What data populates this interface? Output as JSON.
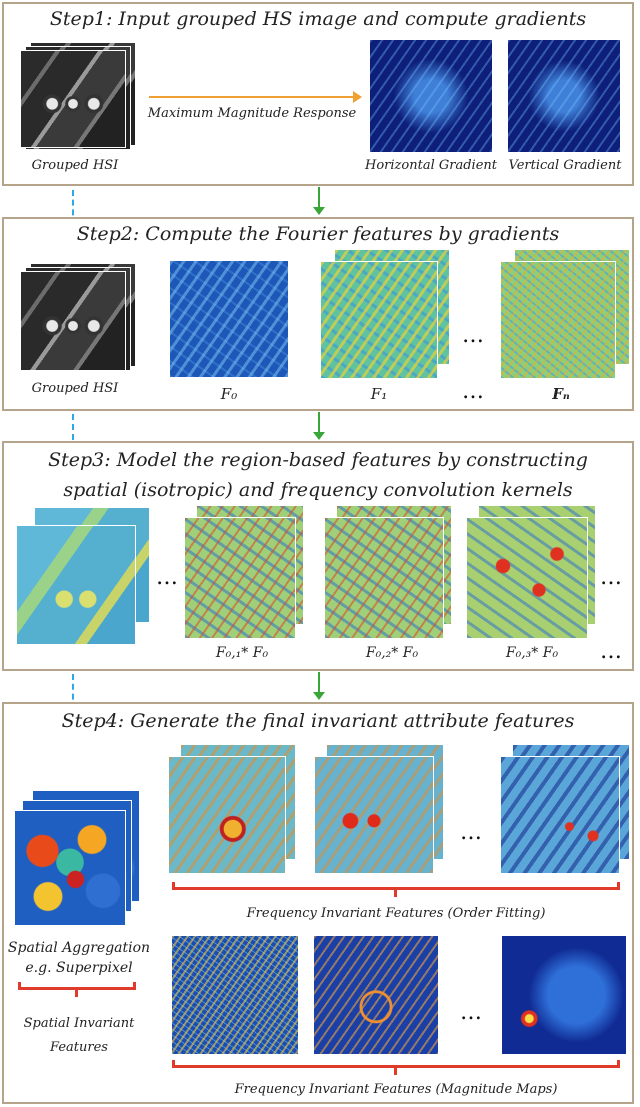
{
  "step1": {
    "title": "Step1: Input grouped HS image and compute gradients",
    "arrow_label": "Maximum Magnitude Response",
    "input_label": "Grouped HSI",
    "hgrad_label": "Horizontal Gradient",
    "vgrad_label": "Vertical Gradient"
  },
  "step2": {
    "title": "Step2: Compute the Fourier features by gradients",
    "input_label": "Grouped HSI",
    "f0_label": "F₀",
    "f1_label": "F₁",
    "dots": "…",
    "fn_label": "Fₙ"
  },
  "step3": {
    "title_line1": "Step3: Model the region-based features by constructing",
    "title_line2": "spatial (isotropic) and frequency convolution kernels",
    "dots": "…",
    "c1_label": "F₀,₁* F₀",
    "c2_label": "F₀,₂* F₀",
    "c3_label": "F₀,₃* F₀",
    "dots_end": "…"
  },
  "step4": {
    "title": "Step4: Generate the final invariant attribute features",
    "dots": "…",
    "order_label": "Frequency Invariant Features (Order Fitting)",
    "spatial_agg_line1": "Spatial Aggregation",
    "spatial_agg_line2": "e.g. Superpixel",
    "spatial_inv_line1": "Spatial Invariant",
    "spatial_inv_line2": "Features",
    "mag_label": "Frequency Invariant Features (Magnitude Maps)"
  },
  "colors": {
    "panel_border": "#b6a48a",
    "flow_arrow": "#3aa63a",
    "dashed_arrow": "#2ea8e8",
    "brace": "#e03a2a",
    "mmr_arrow": "#f0a030"
  }
}
